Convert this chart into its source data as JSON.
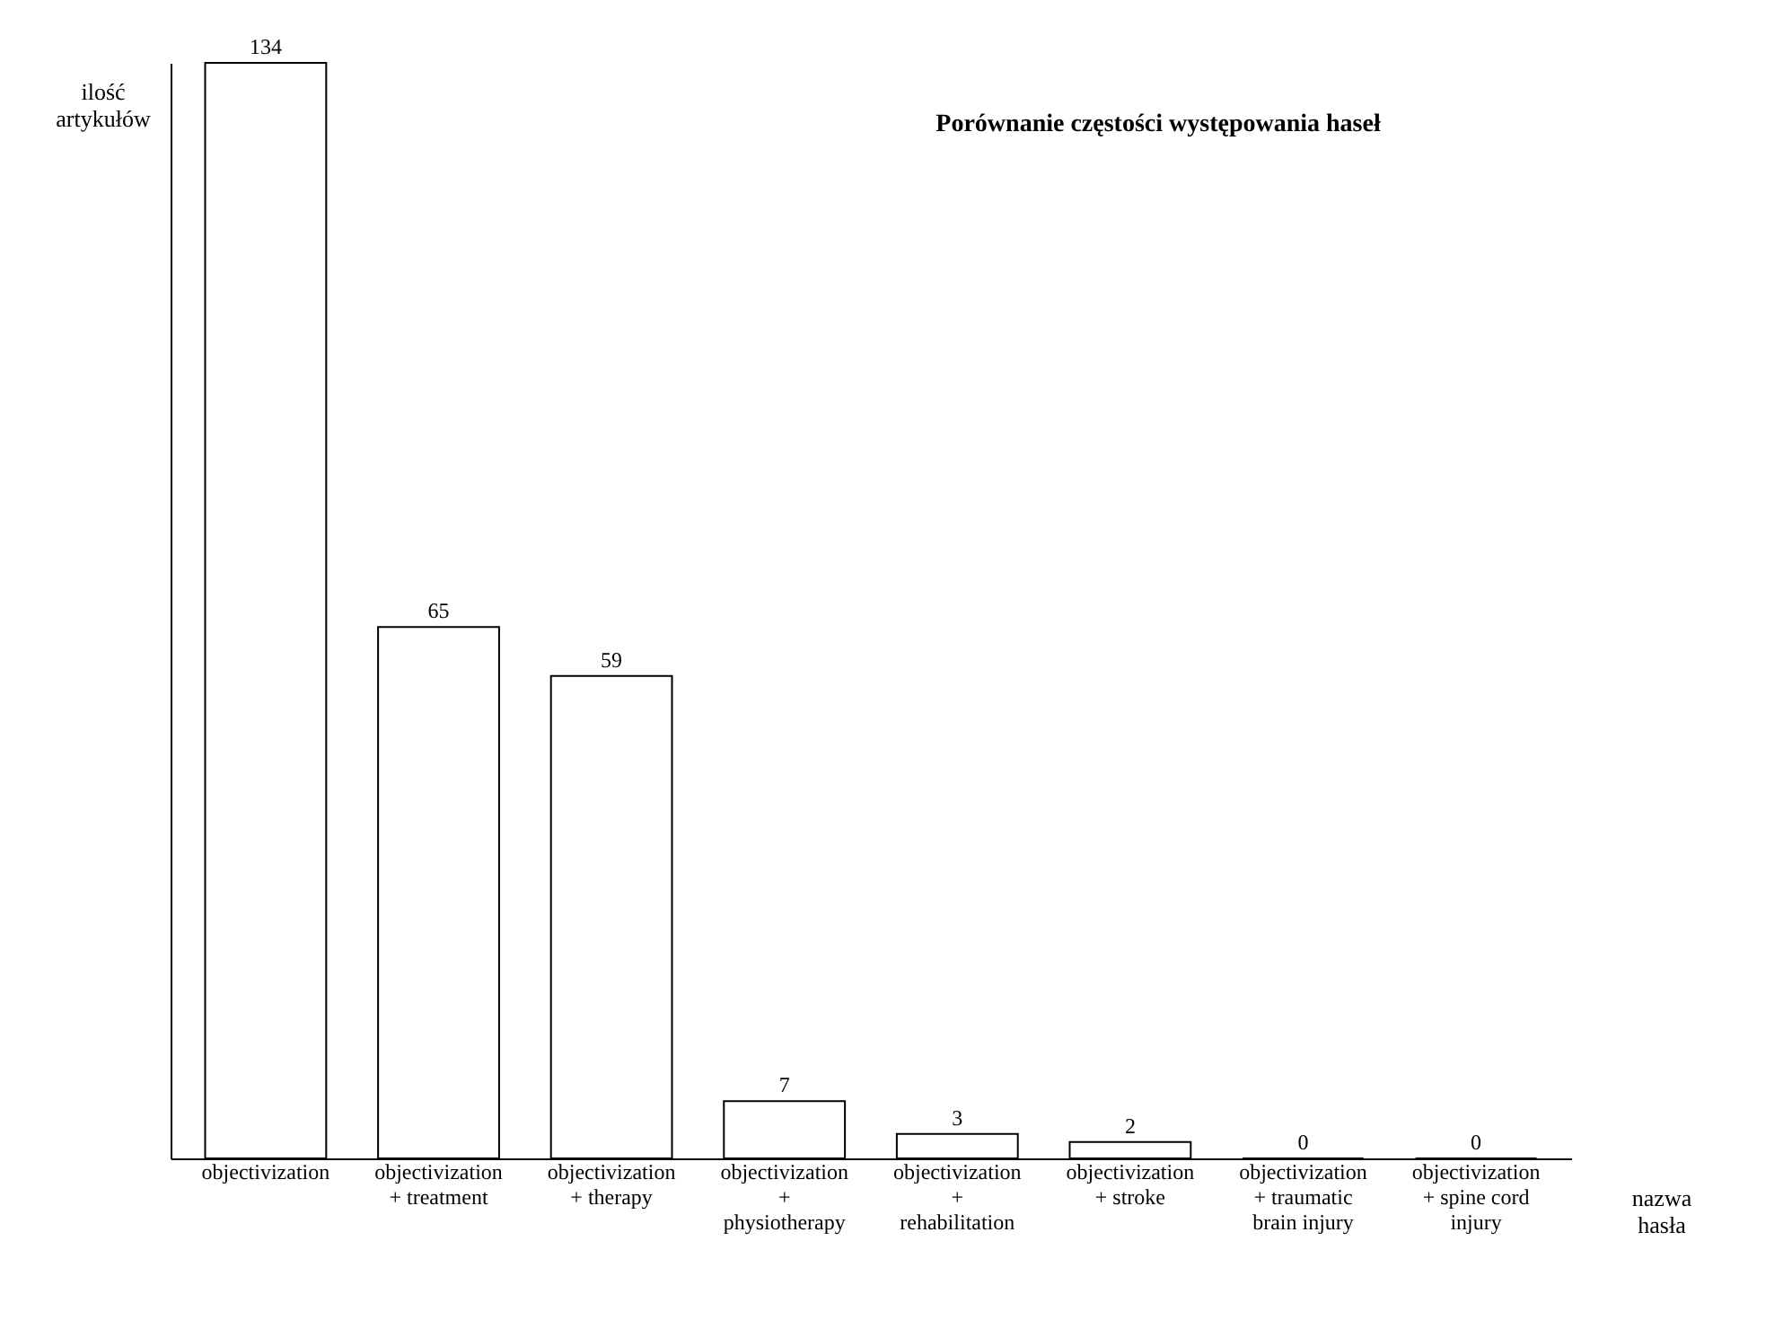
{
  "chart_data": {
    "type": "bar",
    "title": "Porównanie częstości występowania haseł",
    "xlabel": "nazwa hasła",
    "ylabel": "ilość artykułów",
    "categories": [
      "objectivization",
      "objectivization + treatment",
      "objectivization + therapy",
      "objectivization + physiotherapy",
      "objectivization + rehabilitation",
      "objectivization + stroke",
      "objectivization + traumatic brain injury",
      "objectivization + spine cord injury"
    ],
    "values": [
      134,
      65,
      59,
      7,
      3,
      2,
      0,
      0
    ],
    "color": "#ffffff",
    "data_labels": true,
    "tick_labels": "x"
  }
}
